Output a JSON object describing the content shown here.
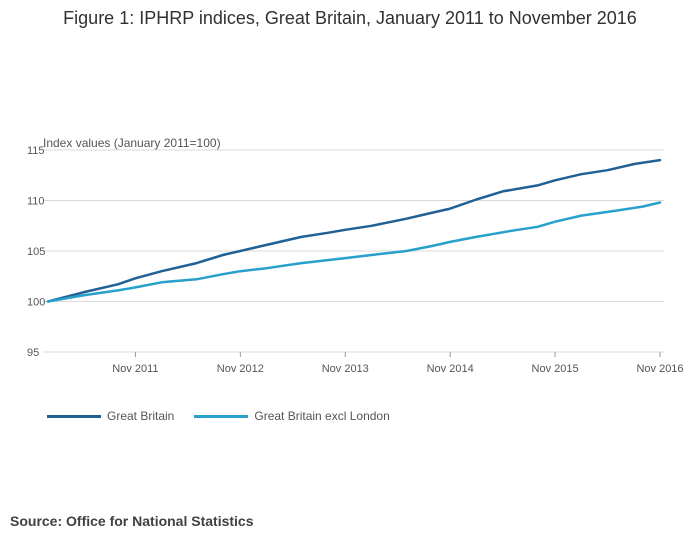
{
  "chart_data": {
    "type": "line",
    "title": "Figure 1: IPHRP indices, Great Britain, January 2011 to November 2016",
    "ylabel": "Index values (January 2011=100)",
    "ylim": [
      95,
      115
    ],
    "yticks": [
      "95",
      "100",
      "105",
      "110",
      "115"
    ],
    "xticks": [
      "Nov 2011",
      "Nov 2012",
      "Nov 2013",
      "Nov 2014",
      "Nov 2015",
      "Nov 2016"
    ],
    "x_range": [
      "2011-01",
      "2016-11"
    ],
    "grid": true,
    "legend_position": "bottom-left",
    "series": [
      {
        "name": "Great Britain",
        "color": "#206095",
        "points": [
          [
            "2011-01",
            100.0
          ],
          [
            "2011-05",
            100.9
          ],
          [
            "2011-09",
            101.7
          ],
          [
            "2011-11",
            102.3
          ],
          [
            "2012-02",
            103.0
          ],
          [
            "2012-06",
            103.8
          ],
          [
            "2012-09",
            104.6
          ],
          [
            "2012-11",
            105.0
          ],
          [
            "2013-02",
            105.6
          ],
          [
            "2013-06",
            106.4
          ],
          [
            "2013-09",
            106.8
          ],
          [
            "2013-11",
            107.1
          ],
          [
            "2014-02",
            107.5
          ],
          [
            "2014-06",
            108.2
          ],
          [
            "2014-08",
            108.6
          ],
          [
            "2014-11",
            109.2
          ],
          [
            "2015-02",
            110.1
          ],
          [
            "2015-05",
            110.9
          ],
          [
            "2015-09",
            111.5
          ],
          [
            "2015-11",
            112.0
          ],
          [
            "2016-02",
            112.6
          ],
          [
            "2016-05",
            113.0
          ],
          [
            "2016-08",
            113.6
          ],
          [
            "2016-11",
            114.0
          ]
        ]
      },
      {
        "name": "Great Britain excl London",
        "color": "#27a0cc",
        "points": [
          [
            "2011-01",
            100.0
          ],
          [
            "2011-05",
            100.6
          ],
          [
            "2011-09",
            101.1
          ],
          [
            "2011-11",
            101.4
          ],
          [
            "2012-02",
            101.9
          ],
          [
            "2012-06",
            102.2
          ],
          [
            "2012-09",
            102.7
          ],
          [
            "2012-11",
            103.0
          ],
          [
            "2013-02",
            103.3
          ],
          [
            "2013-06",
            103.8
          ],
          [
            "2013-09",
            104.1
          ],
          [
            "2013-11",
            104.3
          ],
          [
            "2014-02",
            104.6
          ],
          [
            "2014-06",
            105.0
          ],
          [
            "2014-09",
            105.5
          ],
          [
            "2014-11",
            105.9
          ],
          [
            "2015-02",
            106.4
          ],
          [
            "2015-06",
            107.0
          ],
          [
            "2015-09",
            107.4
          ],
          [
            "2015-11",
            107.9
          ],
          [
            "2016-02",
            108.5
          ],
          [
            "2016-06",
            109.0
          ],
          [
            "2016-09",
            109.4
          ],
          [
            "2016-11",
            109.8
          ]
        ]
      }
    ]
  },
  "source": "Source: Office for National Statistics"
}
